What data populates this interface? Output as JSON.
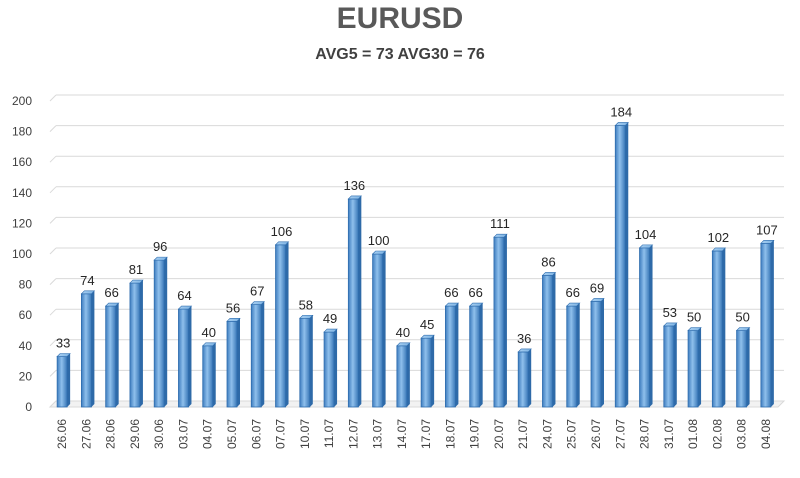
{
  "chart_data": {
    "type": "bar",
    "title": "EURUSD",
    "subtitle": "AVG5 = 73 AVG30 = 76",
    "xlabel": "",
    "ylabel": "",
    "ylim": [
      0,
      200
    ],
    "yticks": [
      0,
      20,
      40,
      60,
      80,
      100,
      120,
      140,
      160,
      180,
      200
    ],
    "grid": true,
    "bar_color": "#5B9BD5",
    "categories": [
      "26.06",
      "27.06",
      "28.06",
      "29.06",
      "30.06",
      "03.07",
      "04.07",
      "05.07",
      "06.07",
      "07.07",
      "10.07",
      "11.07",
      "12.07",
      "13.07",
      "14.07",
      "17.07",
      "18.07",
      "19.07",
      "20.07",
      "21.07",
      "24.07",
      "25.07",
      "26.07",
      "27.07",
      "28.07",
      "31.07",
      "01.08",
      "02.08",
      "03.08",
      "04.08"
    ],
    "values": [
      33,
      74,
      66,
      81,
      96,
      64,
      40,
      56,
      67,
      106,
      58,
      49,
      136,
      100,
      40,
      45,
      66,
      66,
      111,
      36,
      86,
      66,
      69,
      184,
      104,
      53,
      50,
      102,
      50,
      107
    ]
  }
}
